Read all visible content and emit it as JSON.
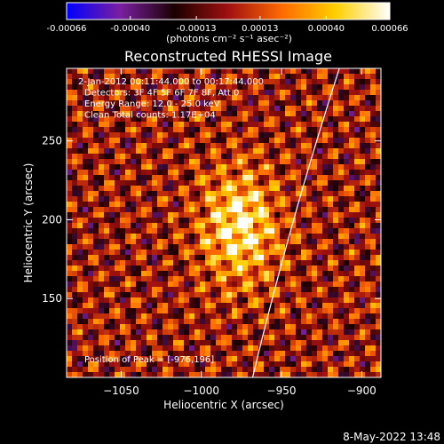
{
  "chart_data": {
    "type": "heatmap",
    "title": "Reconstructed RHESSI Image",
    "colorbar": {
      "tick_labels": [
        "-0.00066",
        "-0.00040",
        "-0.00013",
        "0.00013",
        "0.00040",
        "0.00066"
      ],
      "tick_values": [
        -0.00066,
        -0.0004,
        -0.00013,
        0.00013,
        0.0004,
        0.00066
      ],
      "range": [
        -0.00066,
        0.00066
      ],
      "unit_label": "(photons cm⁻² s⁻¹ asec⁻²)",
      "colormap": [
        "#0000ff",
        "#7a1fa0",
        "#1a0000",
        "#a01010",
        "#ff6a00",
        "#ffd000",
        "#ffffff"
      ]
    },
    "xlabel": "Heliocentric X (arcsec)",
    "ylabel": "Heliocentric Y (arcsec)",
    "xlim": [
      -1084,
      -888
    ],
    "ylim": [
      100,
      296
    ],
    "x_ticks": [
      -1050,
      -1000,
      -950,
      -900
    ],
    "x_tick_labels": [
      "−1050",
      "−1000",
      "−950",
      "−900"
    ],
    "y_ticks": [
      150,
      200,
      250
    ],
    "y_tick_labels": [
      "150",
      "200",
      "250"
    ],
    "info_lines": [
      "2-Jan-2012 00:11:44.000 to 00:17:44.000",
      "Detectors: 3F 4F 5F 6F 7F 8F, Att 0",
      "Energy Range: 12.0 - 25.0 keV",
      "Clean    Total counts: 1.17E+04"
    ],
    "peak_annotation": "Position of Peak = [-976,196]",
    "peak_position": [
      -976,
      196
    ],
    "solar_limb": {
      "color": "#ffffff"
    }
  },
  "footer": {
    "timestamp": "8-May-2022 13:48"
  }
}
